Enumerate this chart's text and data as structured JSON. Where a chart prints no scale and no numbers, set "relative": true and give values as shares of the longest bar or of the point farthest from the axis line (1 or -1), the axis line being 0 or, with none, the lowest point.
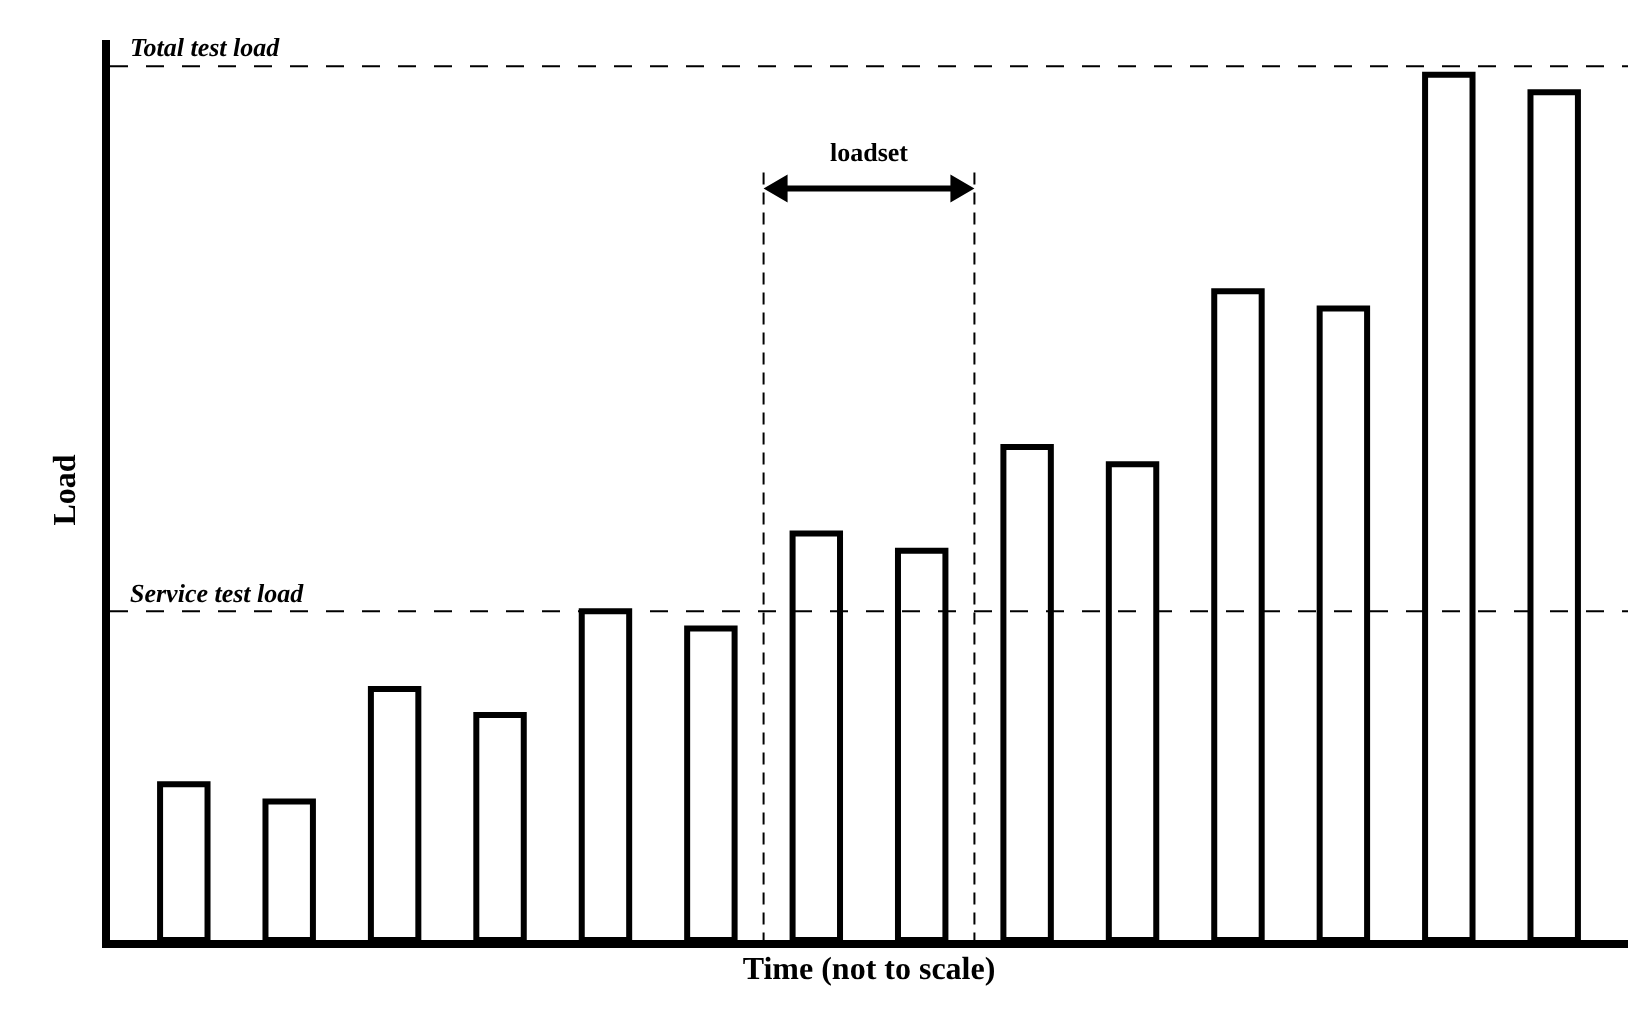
{
  "chart_data": {
    "type": "bar",
    "relative": true,
    "xlabel": "Time (not to scale)",
    "ylabel": "Load",
    "categories": [
      null,
      null,
      null,
      null,
      null,
      null,
      null,
      null,
      null,
      null,
      null,
      null,
      null,
      null
    ],
    "values": [
      0.18,
      0.16,
      0.29,
      0.26,
      0.38,
      0.36,
      0.47,
      0.45,
      0.57,
      0.55,
      0.75,
      0.73,
      1,
      0.98
    ],
    "color": "#ffffff",
    "ref_lines": [
      {
        "axis": "y",
        "value": 0.38,
        "label": "Service test load",
        "color": "#000000",
        "line_style": "dashed"
      },
      {
        "axis": "y",
        "value": 1.01,
        "label": "Total test load",
        "color": "#000000",
        "line_style": "dashed"
      }
    ],
    "annotations": [
      "loadset"
    ],
    "grid": false
  }
}
